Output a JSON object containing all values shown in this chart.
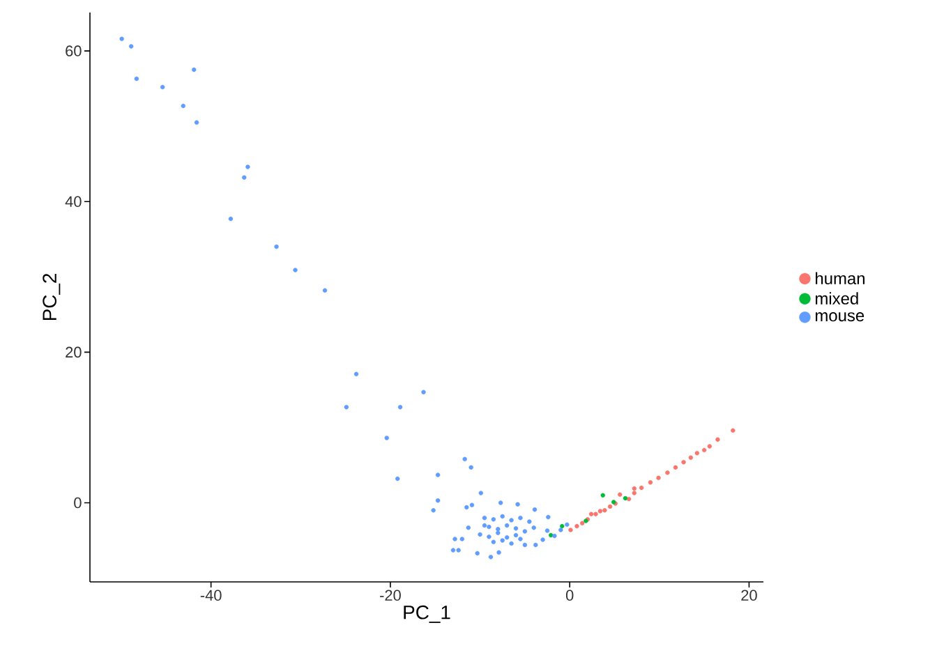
{
  "chart_data": {
    "type": "scatter",
    "xlabel": "PC_1",
    "ylabel": "PC_2",
    "xlim": [
      -53.5,
      21.6
    ],
    "ylim": [
      -10.5,
      65.1
    ],
    "xticks": [
      -40,
      -20,
      0,
      20
    ],
    "yticks": [
      0,
      20,
      40,
      60
    ],
    "grid": false,
    "legend": "right",
    "series": [
      {
        "name": "human",
        "color": "#f8766d",
        "x": [
          0.1,
          0.8,
          1.4,
          2.0,
          2.4,
          2.9,
          3.4,
          3.9,
          4.5,
          5.1,
          5.6,
          6.6,
          7.2,
          7.2,
          8.0,
          9.0,
          9.9,
          10.9,
          11.8,
          12.7,
          13.5,
          14.2,
          15.0,
          15.6,
          16.5,
          18.2
        ],
        "values": [
          -3.6,
          -3.1,
          -2.7,
          -2.2,
          -1.5,
          -1.5,
          -1.1,
          -1.0,
          -0.5,
          -0.1,
          1.1,
          0.5,
          1.3,
          1.9,
          2.0,
          2.7,
          3.3,
          4.0,
          4.7,
          5.4,
          6.0,
          6.6,
          7.0,
          7.5,
          8.4,
          9.6
        ]
      },
      {
        "name": "mixed",
        "color": "#00ba38",
        "x": [
          -2.1,
          -0.85,
          1.8,
          3.7,
          4.9,
          6.2
        ],
        "values": [
          -4.3,
          -3.1,
          -2.4,
          1.0,
          0.1,
          0.6
        ]
      },
      {
        "name": "mouse",
        "color": "#619cff",
        "x": [
          -49.95,
          -48.9,
          -48.3,
          -45.4,
          -41.9,
          -43.1,
          -41.6,
          -35.9,
          -36.3,
          -37.8,
          -32.7,
          -30.6,
          -27.3,
          -23.8,
          -24.9,
          -16.3,
          -18.9,
          -20.4,
          -19.2,
          -11.7,
          -11.0,
          -14.7,
          -14.7,
          -15.2,
          -11.5,
          -10.9,
          -9.9,
          -7.7,
          -5.8,
          -3.9,
          -2.4,
          -11.3,
          -12.8,
          -12.0,
          -13.0,
          -12.4,
          -10.3,
          -8.8,
          -7.9,
          -5.0,
          -3.8,
          -3.0,
          -1.7,
          -0.3,
          -1.0,
          -9.5,
          -8.5,
          -7.5,
          -6.5,
          -5.5,
          -4.5,
          -9.0,
          -8.0,
          -7.0,
          -6.0,
          -5.0,
          -10.0,
          -9.0,
          -8.0,
          -7.0,
          -6.0,
          -4.0,
          -8.5,
          -7.5,
          -6.5,
          -5.5,
          -9.5,
          -2.5
        ],
        "values": [
          61.6,
          60.6,
          56.3,
          55.2,
          57.5,
          52.7,
          50.5,
          44.6,
          43.2,
          37.7,
          34.0,
          30.9,
          28.2,
          17.1,
          12.7,
          14.7,
          12.7,
          8.6,
          3.2,
          5.8,
          4.7,
          3.7,
          0.3,
          -1.0,
          -0.6,
          -0.3,
          1.3,
          0.0,
          -0.2,
          -0.9,
          -1.9,
          -3.3,
          -4.8,
          -4.8,
          -6.3,
          -6.3,
          -6.7,
          -7.2,
          -6.6,
          -5.6,
          -5.6,
          -4.9,
          -4.4,
          -2.9,
          -3.6,
          -2.0,
          -2.2,
          -1.8,
          -2.3,
          -2.0,
          -2.5,
          -3.2,
          -3.5,
          -3.0,
          -3.4,
          -3.8,
          -4.2,
          -4.5,
          -4.0,
          -4.6,
          -4.3,
          -3.3,
          -5.2,
          -5.0,
          -5.4,
          -4.8,
          -3.0,
          -3.7
        ]
      }
    ]
  }
}
